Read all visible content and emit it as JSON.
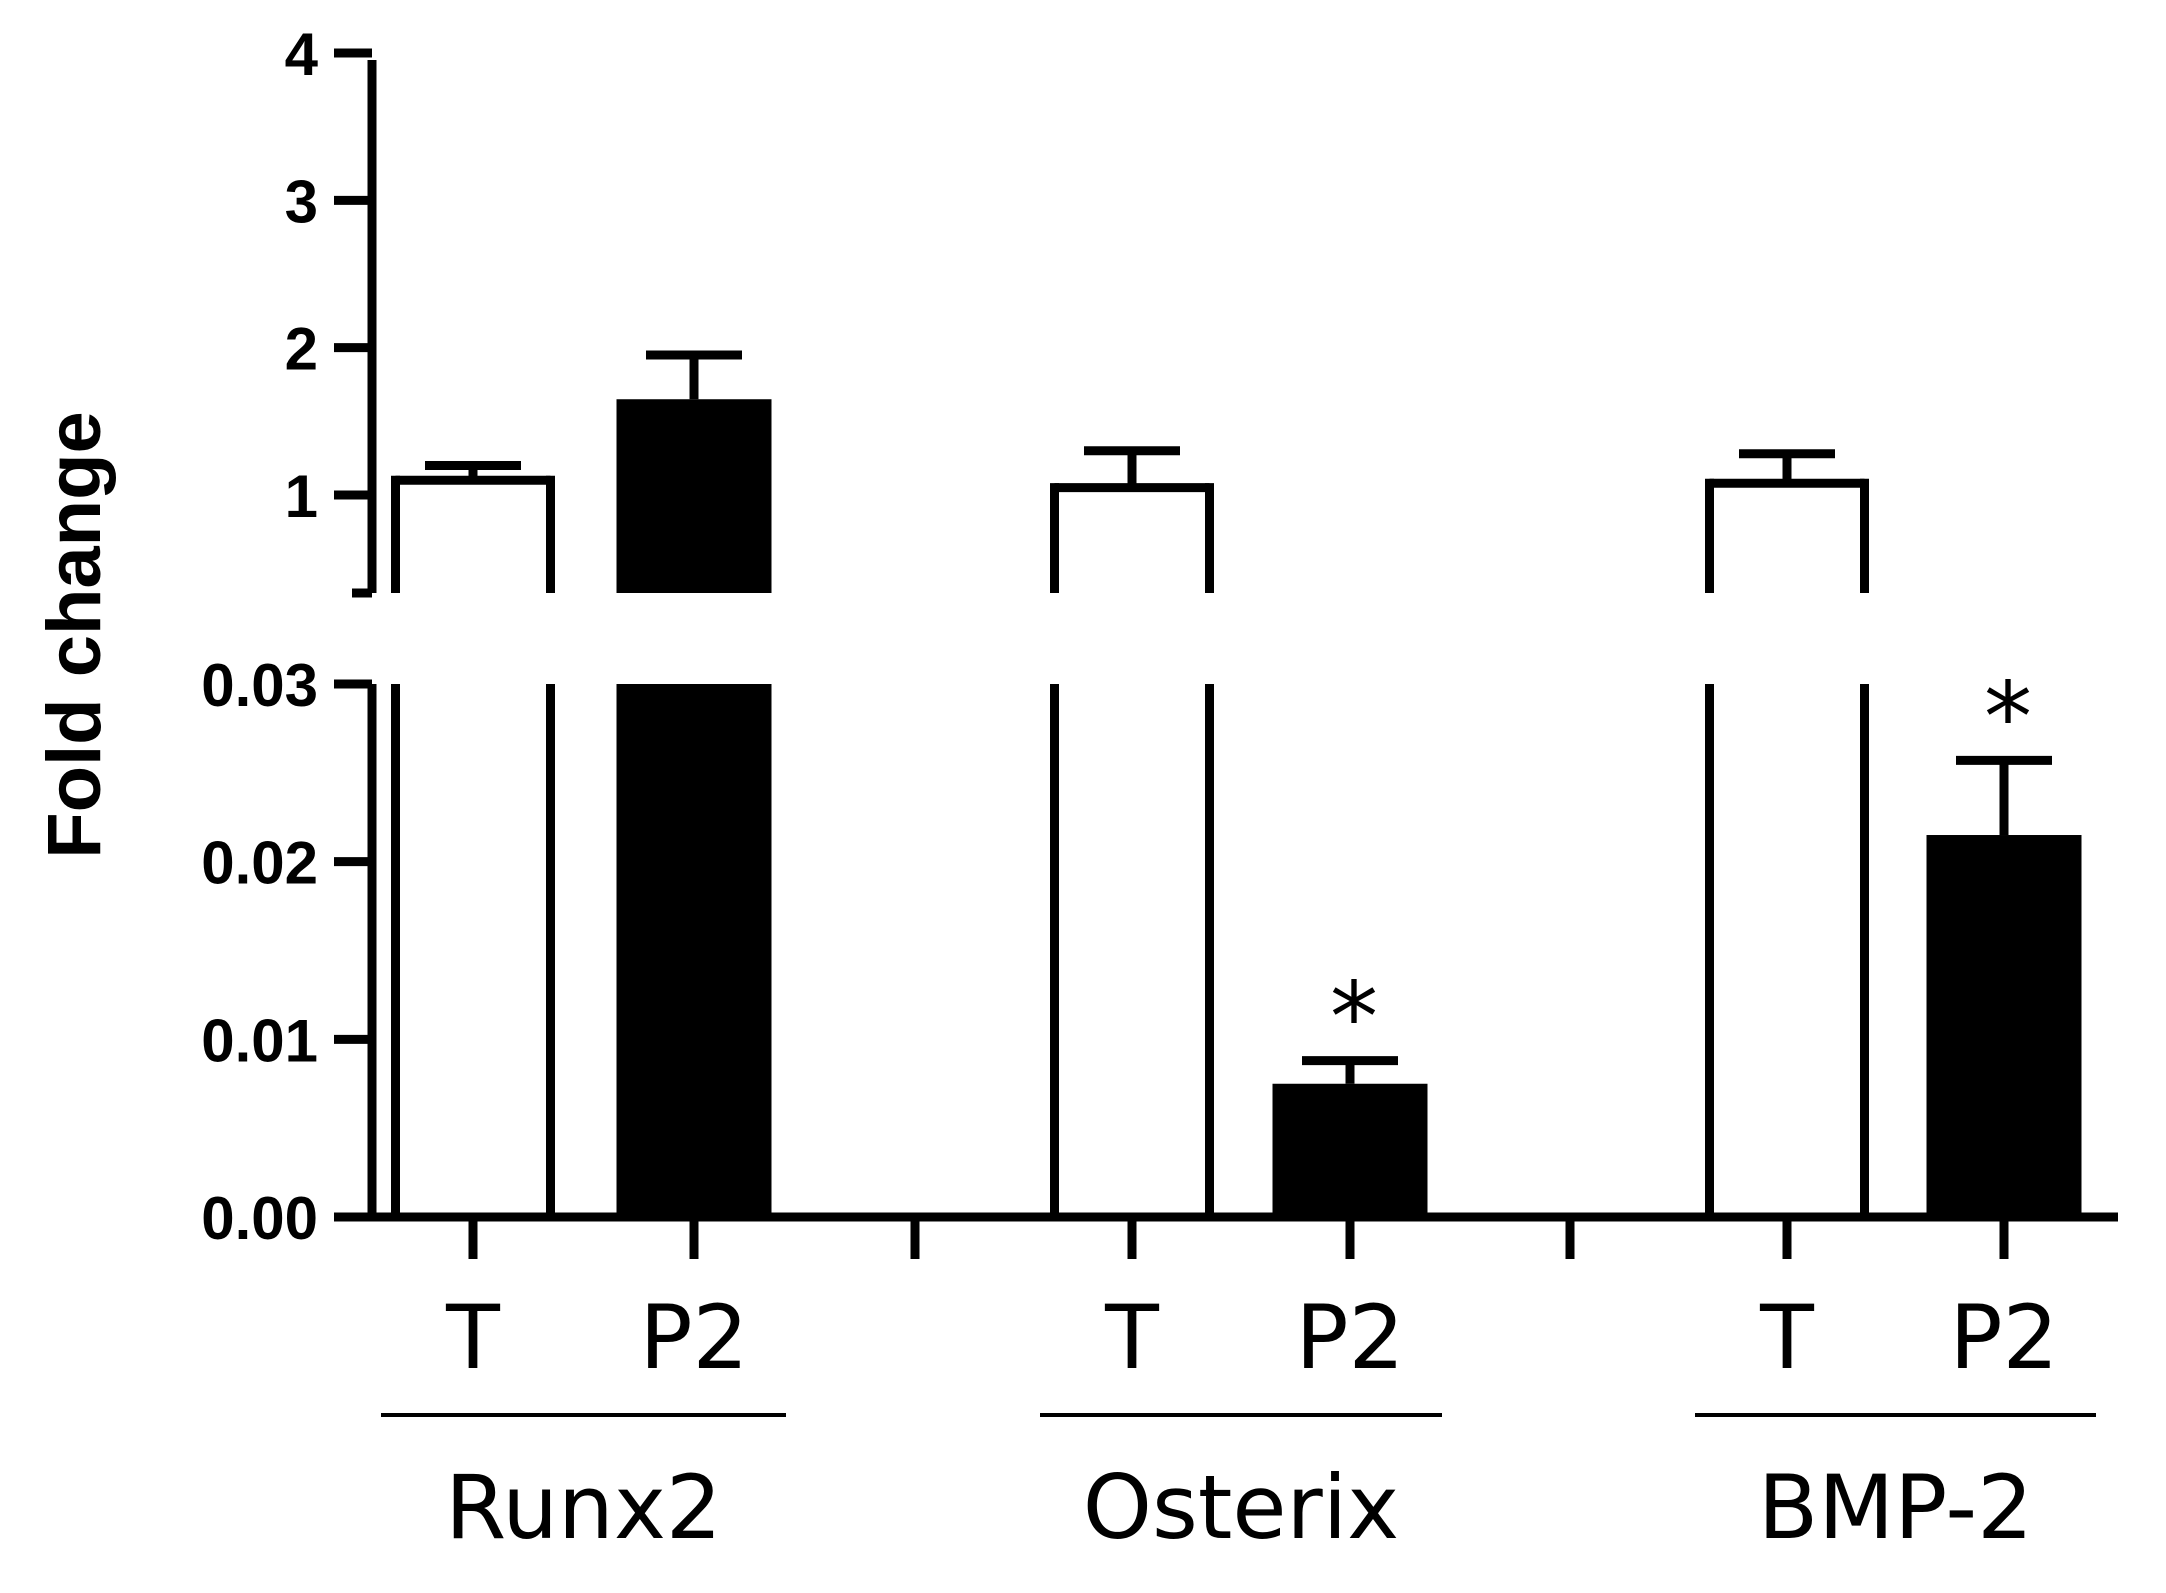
{
  "chart_data": {
    "type": "bar",
    "ylabel": "Fold change",
    "y_axis_broken": true,
    "ylim_lower": [
      0,
      0.03
    ],
    "ylim_upper": [
      0.35,
      4
    ],
    "yticks_lower": [
      "0.00",
      "0.01",
      "0.02",
      "0.03"
    ],
    "yticks_upper": [
      "1",
      "2",
      "3",
      "4"
    ],
    "grid": false,
    "groups": [
      {
        "name": "Runx2",
        "bars": [
          {
            "label": "T",
            "value": 1.1,
            "error": 0.1,
            "fill": "white",
            "sig": ""
          },
          {
            "label": "P2",
            "value": 1.65,
            "error": 0.3,
            "fill": "black",
            "sig": ""
          }
        ]
      },
      {
        "name": "Osterix",
        "bars": [
          {
            "label": "T",
            "value": 1.05,
            "error": 0.25,
            "fill": "white",
            "sig": ""
          },
          {
            "label": "P2",
            "value": 0.0075,
            "error": 0.0013,
            "fill": "black",
            "sig": "*"
          }
        ]
      },
      {
        "name": "BMP-2",
        "bars": [
          {
            "label": "T",
            "value": 1.08,
            "error": 0.2,
            "fill": "white",
            "sig": ""
          },
          {
            "label": "P2",
            "value": 0.0215,
            "error": 0.0042,
            "fill": "black",
            "sig": "*"
          }
        ]
      }
    ]
  }
}
